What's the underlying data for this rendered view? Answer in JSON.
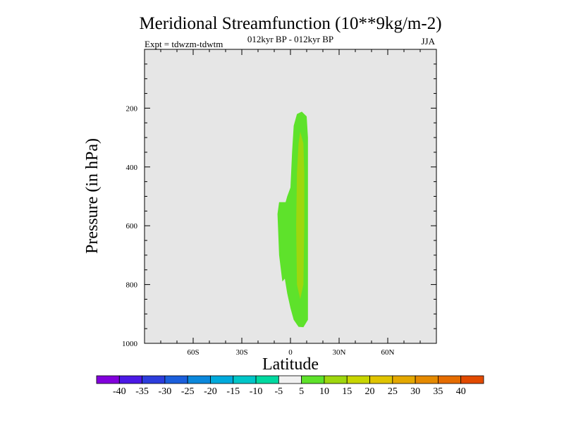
{
  "chart_data": {
    "type": "heatmap",
    "title": "Meridional Streamfunction (10**9kg/m-2)",
    "subtitle_center": "012kyr BP - 012kyr BP",
    "subtitle_left": "Expt = tdwzm-tdwtm",
    "subtitle_right": "JJA",
    "xlabel": "Latitude",
    "ylabel": "Pressure (in hPa)",
    "x_ticks": [
      {
        "value": -60,
        "label": "60S"
      },
      {
        "value": -30,
        "label": "30S"
      },
      {
        "value": 0,
        "label": "0"
      },
      {
        "value": 30,
        "label": "30N"
      },
      {
        "value": 60,
        "label": "60N"
      }
    ],
    "y_ticks": [
      {
        "value": 200,
        "label": "200"
      },
      {
        "value": 400,
        "label": "400"
      },
      {
        "value": 600,
        "label": "600"
      },
      {
        "value": 800,
        "label": "800"
      },
      {
        "value": 1000,
        "label": "1000"
      }
    ],
    "xlim": [
      -90,
      90
    ],
    "ylim": [
      1000,
      0
    ],
    "y_axis_inverted": true,
    "background_color": "#e6e6e6",
    "contour_regions": [
      {
        "range": "5 to 10",
        "color": "#5ee22b",
        "points": [
          [
            4,
            220
          ],
          [
            7,
            212
          ],
          [
            10,
            228
          ],
          [
            10.8,
            300
          ],
          [
            10.8,
            600
          ],
          [
            10.8,
            920
          ],
          [
            8,
            945
          ],
          [
            5,
            944
          ],
          [
            2,
            920
          ],
          [
            0,
            880
          ],
          [
            -2,
            830
          ],
          [
            -3.5,
            780
          ],
          [
            -5,
            790
          ],
          [
            -7,
            700
          ],
          [
            -8,
            560
          ],
          [
            -7,
            520
          ],
          [
            -3,
            520
          ],
          [
            -2,
            500
          ],
          [
            0,
            470
          ],
          [
            1,
            350
          ],
          [
            2,
            260
          ]
        ]
      },
      {
        "range": "10 to 15",
        "color": "#9ed70e",
        "points": [
          [
            6,
            280
          ],
          [
            8,
            320
          ],
          [
            8.5,
            420
          ],
          [
            8.5,
            600
          ],
          [
            8,
            800
          ],
          [
            6,
            850
          ],
          [
            4,
            800
          ],
          [
            3.5,
            600
          ],
          [
            4,
            420
          ],
          [
            5,
            320
          ]
        ]
      }
    ],
    "colorbar": {
      "labels": [
        "-40",
        "-35",
        "-30",
        "-25",
        "-20",
        "-15",
        "-10",
        "-5",
        "5",
        "10",
        "15",
        "20",
        "25",
        "30",
        "35",
        "40"
      ],
      "colors": [
        "#8200dc",
        "#4b19e6",
        "#2c3ddc",
        "#1b5fdc",
        "#0b88dc",
        "#00aadc",
        "#00c6c8",
        "#00d9a0",
        "#f0f0f0",
        "#5ee22b",
        "#9ed70e",
        "#c8d600",
        "#e0c400",
        "#e4a800",
        "#e58a00",
        "#e56c00",
        "#e24a00"
      ]
    }
  }
}
